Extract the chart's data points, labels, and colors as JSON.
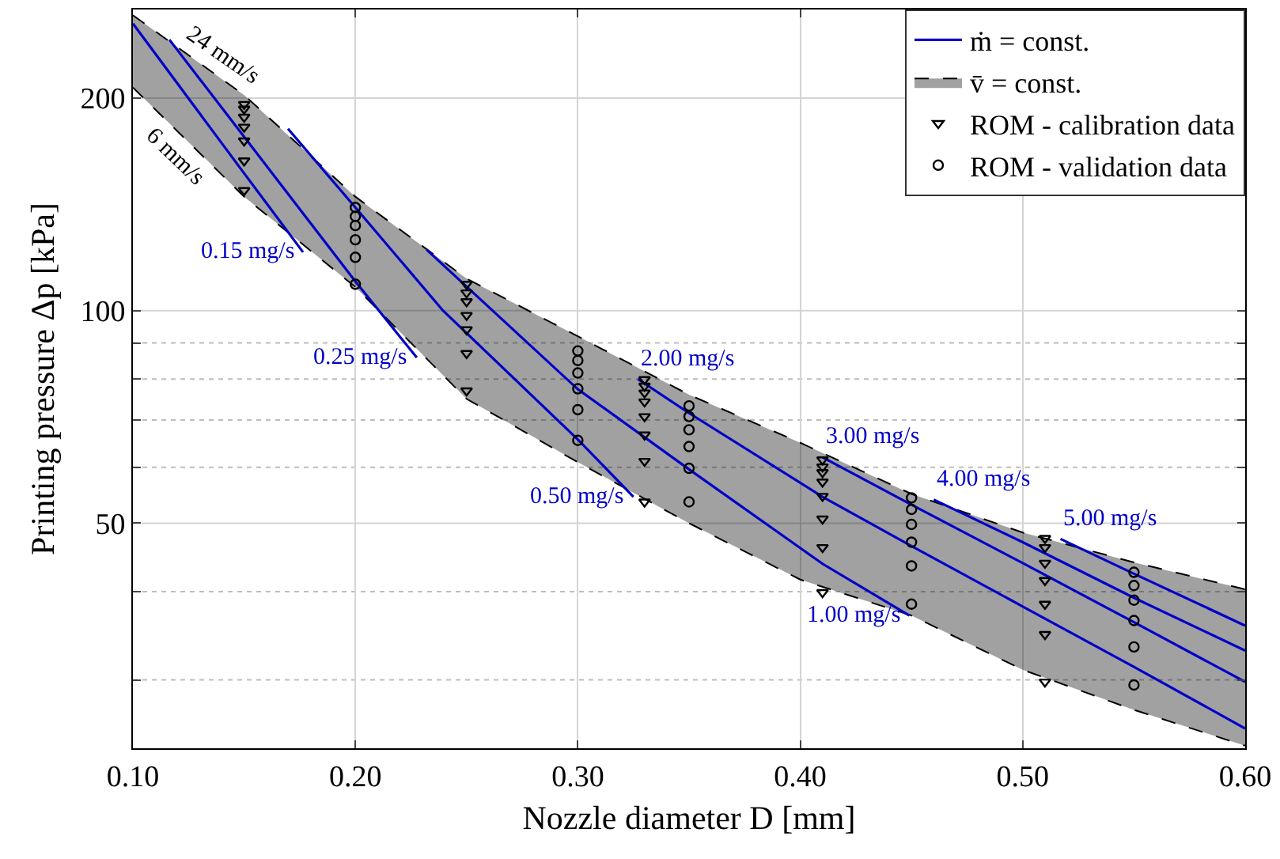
{
  "chart_data": {
    "type": "line",
    "xlabel": "Nozzle diameter D [mm]",
    "ylabel": "Printing pressure Δp [kPa]",
    "log": true,
    "grid": true,
    "legend": "top right",
    "xlim": [
      0.1,
      0.6
    ],
    "xticks": [
      {
        "value": 0.1,
        "label": "0.10"
      },
      {
        "value": 0.2,
        "label": "0.20"
      },
      {
        "value": 0.3,
        "label": "0.30"
      },
      {
        "value": 0.4,
        "label": "0.40"
      },
      {
        "value": 0.5,
        "label": "0.50"
      },
      {
        "value": 0.6,
        "label": "0.60"
      }
    ],
    "ylim": [
      24,
      267
    ],
    "yticks": [
      {
        "value": 30,
        "label": null
      },
      {
        "value": 40,
        "label": null
      },
      50,
      {
        "value": 60,
        "label": null
      },
      {
        "value": 70,
        "label": null
      },
      {
        "value": 80,
        "label": null
      },
      {
        "value": 90,
        "label": null
      },
      100,
      200
    ],
    "annotations": [
      {
        "text": "24 mm/s",
        "x": 0.135,
        "y": 218
      },
      {
        "text": "6 mm/s",
        "x": 0.125,
        "y": 173
      },
      {
        "text": "0.15 mg/s",
        "x": 0.1765,
        "y": 121
      },
      {
        "text": "0.25 mg/s",
        "x": 0.2276,
        "y": 85.8
      },
      {
        "text": "0.50 mg/s",
        "x": 0.325,
        "y": 54.5
      },
      {
        "text": "1.00 mg/s",
        "x": 0.449,
        "y": 37
      },
      {
        "text": "2.00 mg/s",
        "x": 0.327,
        "y": 80
      },
      {
        "text": "3.00 mg/s",
        "x": 0.41,
        "y": 62
      },
      {
        "text": "4.00 mg/s",
        "x": 0.46,
        "y": 54
      },
      {
        "text": "5.00 mg/s",
        "x": 0.517,
        "y": 47.5
      }
    ],
    "series": [
      {
        "name": "ṁ = const.",
        "color": "#0000c8",
        "line_style": "solid",
        "marker": "none",
        "x": [
          0.1,
          0.15,
          0.1765
        ],
        "values": [
          255,
          156.5,
          121
        ]
      },
      {
        "color": "#0000c8",
        "line_style": "solid",
        "marker": "none",
        "x": [
          0.1164,
          0.2,
          0.2276
        ],
        "values": [
          242,
          110,
          85.8
        ]
      },
      {
        "color": "#0000c8",
        "line_style": "solid",
        "marker": "none",
        "x": [
          0.1697,
          0.2,
          0.2394,
          0.3,
          0.325
        ],
        "values": [
          181,
          140,
          100,
          65.7,
          54.5
        ]
      },
      {
        "color": "#0000c8",
        "line_style": "solid",
        "marker": "none",
        "x": [
          0.232,
          0.3,
          0.35,
          0.41,
          0.449
        ],
        "values": [
          122,
          77.4,
          59.6,
          43.8,
          37
        ]
      },
      {
        "color": "#0000c8",
        "line_style": "solid",
        "marker": "none",
        "x": [
          0.327,
          0.35,
          0.41,
          0.45,
          0.5,
          0.55,
          0.6
        ],
        "values": [
          80,
          71.6,
          54.5,
          46.4,
          38.1,
          31.3,
          25.6
        ]
      },
      {
        "color": "#0000c8",
        "line_style": "solid",
        "marker": "none",
        "x": [
          0.41,
          0.45,
          0.5,
          0.55,
          0.6
        ],
        "values": [
          62,
          53.1,
          43.9,
          36.2,
          29.8
        ]
      },
      {
        "color": "#0000c8",
        "line_style": "solid",
        "marker": "none",
        "x": [
          0.46,
          0.5,
          0.55,
          0.6
        ],
        "values": [
          54,
          47,
          39.2,
          33
        ]
      },
      {
        "color": "#0000c8",
        "line_style": "solid",
        "marker": "none",
        "x": [
          0.517,
          0.55,
          0.6
        ],
        "values": [
          47.5,
          42.4,
          35.8
        ]
      },
      {
        "color": "#000000",
        "line_style": "dashed",
        "marker": "none",
        "x": [
          0.1,
          0.15,
          0.2,
          0.25,
          0.3,
          0.35,
          0.4,
          0.45,
          0.5,
          0.55,
          0.6
        ],
        "values": [
          207,
          145,
          108,
          75,
          61,
          50,
          41.6,
          37,
          31,
          27.2,
          24.2
        ]
      },
      {
        "type": "area",
        "name": "v̄ = const.",
        "color": "#000000",
        "line_style": "dashed",
        "x": [
          0.1,
          0.15,
          0.2,
          0.25,
          0.3,
          0.35,
          0.4,
          0.45,
          0.5,
          0.55,
          0.6
        ],
        "values": [
          262,
          202,
          145,
          111,
          92,
          76,
          65,
          55,
          48.5,
          44,
          40.3
        ]
      },
      {
        "type": "scatter",
        "name": "ROM - calibration data",
        "color": "#000000",
        "marker": "triangle",
        "x": [
          0.15,
          0.15,
          0.15,
          0.15,
          0.15,
          0.15,
          0.15,
          0.25,
          0.25,
          0.25,
          0.25,
          0.25,
          0.25,
          0.25,
          0.33,
          0.33,
          0.33,
          0.33,
          0.33,
          0.33,
          0.33,
          0.33,
          0.41,
          0.41,
          0.41,
          0.41,
          0.41,
          0.41,
          0.41,
          0.41,
          0.51,
          0.51,
          0.51,
          0.51,
          0.51,
          0.51,
          0.51
        ],
        "values": [
          196,
          193,
          188,
          182,
          174,
          163,
          148,
          109,
          106,
          103,
          98.5,
          94,
          87,
          77,
          79.9,
          78.2,
          76.5,
          74.3,
          70.8,
          66.7,
          61.2,
          53.6,
          61.5,
          60.1,
          59,
          57.2,
          54.6,
          50.7,
          46.2,
          39.9,
          47.6,
          46.2,
          43.9,
          41.5,
          38.4,
          34.8,
          29.8
        ]
      },
      {
        "type": "scatter",
        "name": "ROM - validation data",
        "color": "#000000",
        "marker": "circle",
        "x": [
          0.2,
          0.2,
          0.2,
          0.2,
          0.2,
          0.2,
          0.3,
          0.3,
          0.3,
          0.3,
          0.3,
          0.3,
          0.35,
          0.35,
          0.35,
          0.35,
          0.35,
          0.35,
          0.45,
          0.45,
          0.45,
          0.45,
          0.45,
          0.45,
          0.55,
          0.55,
          0.55,
          0.55,
          0.55,
          0.55
        ],
        "values": [
          140,
          136,
          132,
          126,
          119,
          109,
          87.7,
          85,
          81.6,
          77.5,
          72.4,
          65.5,
          73.3,
          70.8,
          67.8,
          64.2,
          59.8,
          53.6,
          54.3,
          52.3,
          49.8,
          47,
          43.5,
          38.4,
          42.6,
          40.8,
          38.9,
          36.4,
          33.4,
          29.5
        ]
      }
    ]
  }
}
